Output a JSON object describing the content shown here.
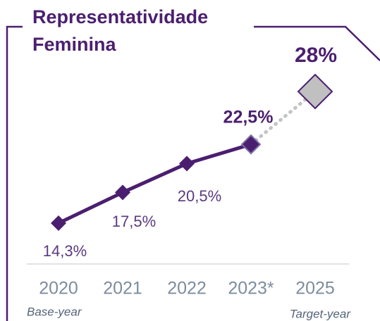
{
  "chart_data": {
    "type": "line",
    "title": "Representatividade Feminina",
    "categories": [
      "2020",
      "2021",
      "2022",
      "2023*",
      "2025"
    ],
    "values": [
      14.3,
      17.5,
      20.5,
      22.5,
      28
    ],
    "value_labels": [
      "14,3%",
      "17,5%",
      "20,5%",
      "22,5%",
      "28%"
    ],
    "annotations": [
      "Base-year",
      "Target-year"
    ],
    "color": "#4b1f6f"
  }
}
